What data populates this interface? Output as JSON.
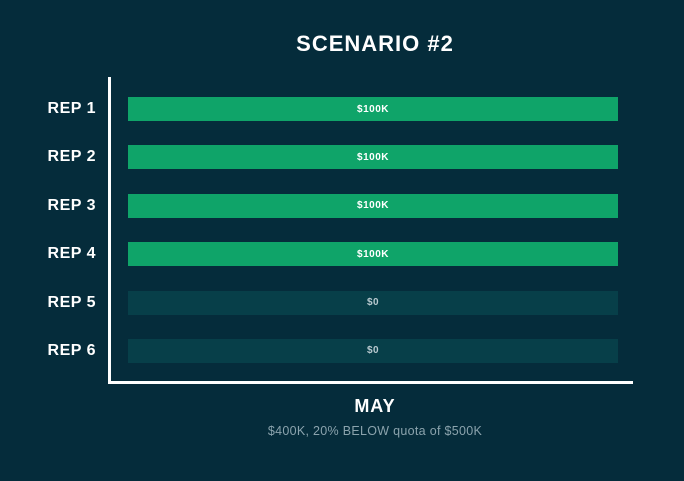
{
  "page": {
    "title": "SCENARIO #2"
  },
  "colors": {
    "background": "#052C3B",
    "bar_filled": "#0FA469",
    "bar_empty": "#073F49",
    "axis": "#FFFFFF",
    "text_primary": "#FFFFFF",
    "text_muted": "#8BA3AD"
  },
  "chart_data": {
    "type": "bar",
    "orientation": "horizontal",
    "title": "SCENARIO #2",
    "categories": [
      "REP 1",
      "REP 2",
      "REP 3",
      "REP 4",
      "REP 5",
      "REP 6"
    ],
    "values": [
      100000,
      100000,
      100000,
      100000,
      0,
      0
    ],
    "value_labels": [
      "$100K",
      "$100K",
      "$100K",
      "$100K",
      "$0",
      "$0"
    ],
    "filled": [
      true,
      true,
      true,
      true,
      false,
      false
    ],
    "xlim": [
      0,
      100000
    ],
    "xlabel": "MAY",
    "footnote": "$400K, 20% BELOW quota of $500K",
    "grid": false,
    "legend": false
  }
}
